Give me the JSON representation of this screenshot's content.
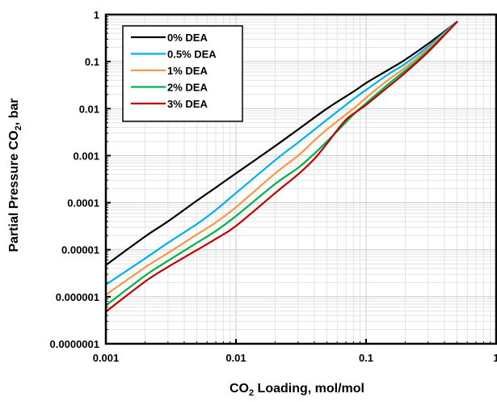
{
  "chart_data": {
    "type": "line",
    "title": "",
    "xlabel": {
      "main": "CO",
      "sub": "2",
      "rest": " Loading, mol/mol"
    },
    "ylabel": {
      "main": "Partial Pressure CO",
      "sub": "2",
      "rest": ", bar"
    },
    "xscale": "log",
    "yscale": "log",
    "xlim": [
      0.001,
      1
    ],
    "ylim": [
      1e-07,
      1
    ],
    "x_ticks": [
      {
        "value": 0.001,
        "label": "0.001"
      },
      {
        "value": 0.01,
        "label": "0.01"
      },
      {
        "value": 0.1,
        "label": "0.1"
      },
      {
        "value": 1,
        "label": "1"
      }
    ],
    "y_ticks": [
      {
        "value": 1e-07,
        "label": "0.0000001"
      },
      {
        "value": 1e-06,
        "label": "0.000001"
      },
      {
        "value": 1e-05,
        "label": "0.00001"
      },
      {
        "value": 0.0001,
        "label": "0.0001"
      },
      {
        "value": 0.001,
        "label": "0.001"
      },
      {
        "value": 0.01,
        "label": "0.01"
      },
      {
        "value": 0.1,
        "label": "0.1"
      },
      {
        "value": 1,
        "label": "1"
      }
    ],
    "grid": true,
    "legend_position": "top-left",
    "series": [
      {
        "name": "0% DEA",
        "color": "#000000",
        "points": [
          [
            0.001,
            4.7e-06
          ],
          [
            0.002,
            1.9e-05
          ],
          [
            0.003,
            4e-05
          ],
          [
            0.005,
            0.00011
          ],
          [
            0.007,
            0.00021
          ],
          [
            0.01,
            0.00042
          ],
          [
            0.02,
            0.0016
          ],
          [
            0.03,
            0.0036
          ],
          [
            0.05,
            0.01
          ],
          [
            0.08,
            0.023
          ],
          [
            0.1,
            0.035
          ],
          [
            0.15,
            0.068
          ],
          [
            0.2,
            0.11
          ],
          [
            0.3,
            0.24
          ],
          [
            0.5,
            0.7
          ]
        ]
      },
      {
        "name": "0.5% DEA",
        "color": "#00B0F0",
        "points": [
          [
            0.001,
            1.8e-06
          ],
          [
            0.002,
            6.5e-06
          ],
          [
            0.003,
            1.4e-05
          ],
          [
            0.005,
            3.5e-05
          ],
          [
            0.007,
            7e-05
          ],
          [
            0.01,
            0.00016
          ],
          [
            0.02,
            0.0008
          ],
          [
            0.03,
            0.0019
          ],
          [
            0.05,
            0.0058
          ],
          [
            0.08,
            0.016
          ],
          [
            0.1,
            0.025
          ],
          [
            0.15,
            0.055
          ],
          [
            0.2,
            0.09
          ],
          [
            0.3,
            0.21
          ],
          [
            0.5,
            0.7
          ]
        ]
      },
      {
        "name": "1% DEA",
        "color": "#F79646",
        "points": [
          [
            0.001,
            1.1e-06
          ],
          [
            0.002,
            4.2e-06
          ],
          [
            0.003,
            8.5e-06
          ],
          [
            0.005,
            2.1e-05
          ],
          [
            0.007,
            3.8e-05
          ],
          [
            0.01,
            8e-05
          ],
          [
            0.02,
            0.00042
          ],
          [
            0.03,
            0.001
          ],
          [
            0.04,
            0.0021
          ],
          [
            0.05,
            0.0036
          ],
          [
            0.08,
            0.01
          ],
          [
            0.1,
            0.017
          ],
          [
            0.15,
            0.042
          ],
          [
            0.2,
            0.075
          ],
          [
            0.3,
            0.19
          ],
          [
            0.5,
            0.7
          ]
        ]
      },
      {
        "name": "2% DEA",
        "color": "#00B050",
        "points": [
          [
            0.001,
            6.5e-07
          ],
          [
            0.002,
            2.8e-06
          ],
          [
            0.003,
            5.8e-06
          ],
          [
            0.005,
            1.4e-05
          ],
          [
            0.007,
            2.5e-05
          ],
          [
            0.01,
            5.2e-05
          ],
          [
            0.02,
            0.00025
          ],
          [
            0.03,
            0.00055
          ],
          [
            0.04,
            0.0011
          ],
          [
            0.05,
            0.002
          ],
          [
            0.06,
            0.0033
          ],
          [
            0.08,
            0.0075
          ],
          [
            0.1,
            0.013
          ],
          [
            0.15,
            0.034
          ],
          [
            0.2,
            0.065
          ],
          [
            0.3,
            0.17
          ],
          [
            0.5,
            0.7
          ]
        ]
      },
      {
        "name": "3% DEA",
        "color": "#C00000",
        "points": [
          [
            0.001,
            4.8e-07
          ],
          [
            0.002,
            2.1e-06
          ],
          [
            0.003,
            4.3e-06
          ],
          [
            0.005,
            9.8e-06
          ],
          [
            0.007,
            1.7e-05
          ],
          [
            0.01,
            3.2e-05
          ],
          [
            0.02,
            0.00016
          ],
          [
            0.03,
            0.0004
          ],
          [
            0.04,
            0.00085
          ],
          [
            0.05,
            0.0018
          ],
          [
            0.06,
            0.0035
          ],
          [
            0.07,
            0.0058
          ],
          [
            0.08,
            0.0078
          ],
          [
            0.1,
            0.012
          ],
          [
            0.15,
            0.03
          ],
          [
            0.2,
            0.058
          ],
          [
            0.3,
            0.16
          ],
          [
            0.5,
            0.7
          ]
        ]
      }
    ]
  }
}
